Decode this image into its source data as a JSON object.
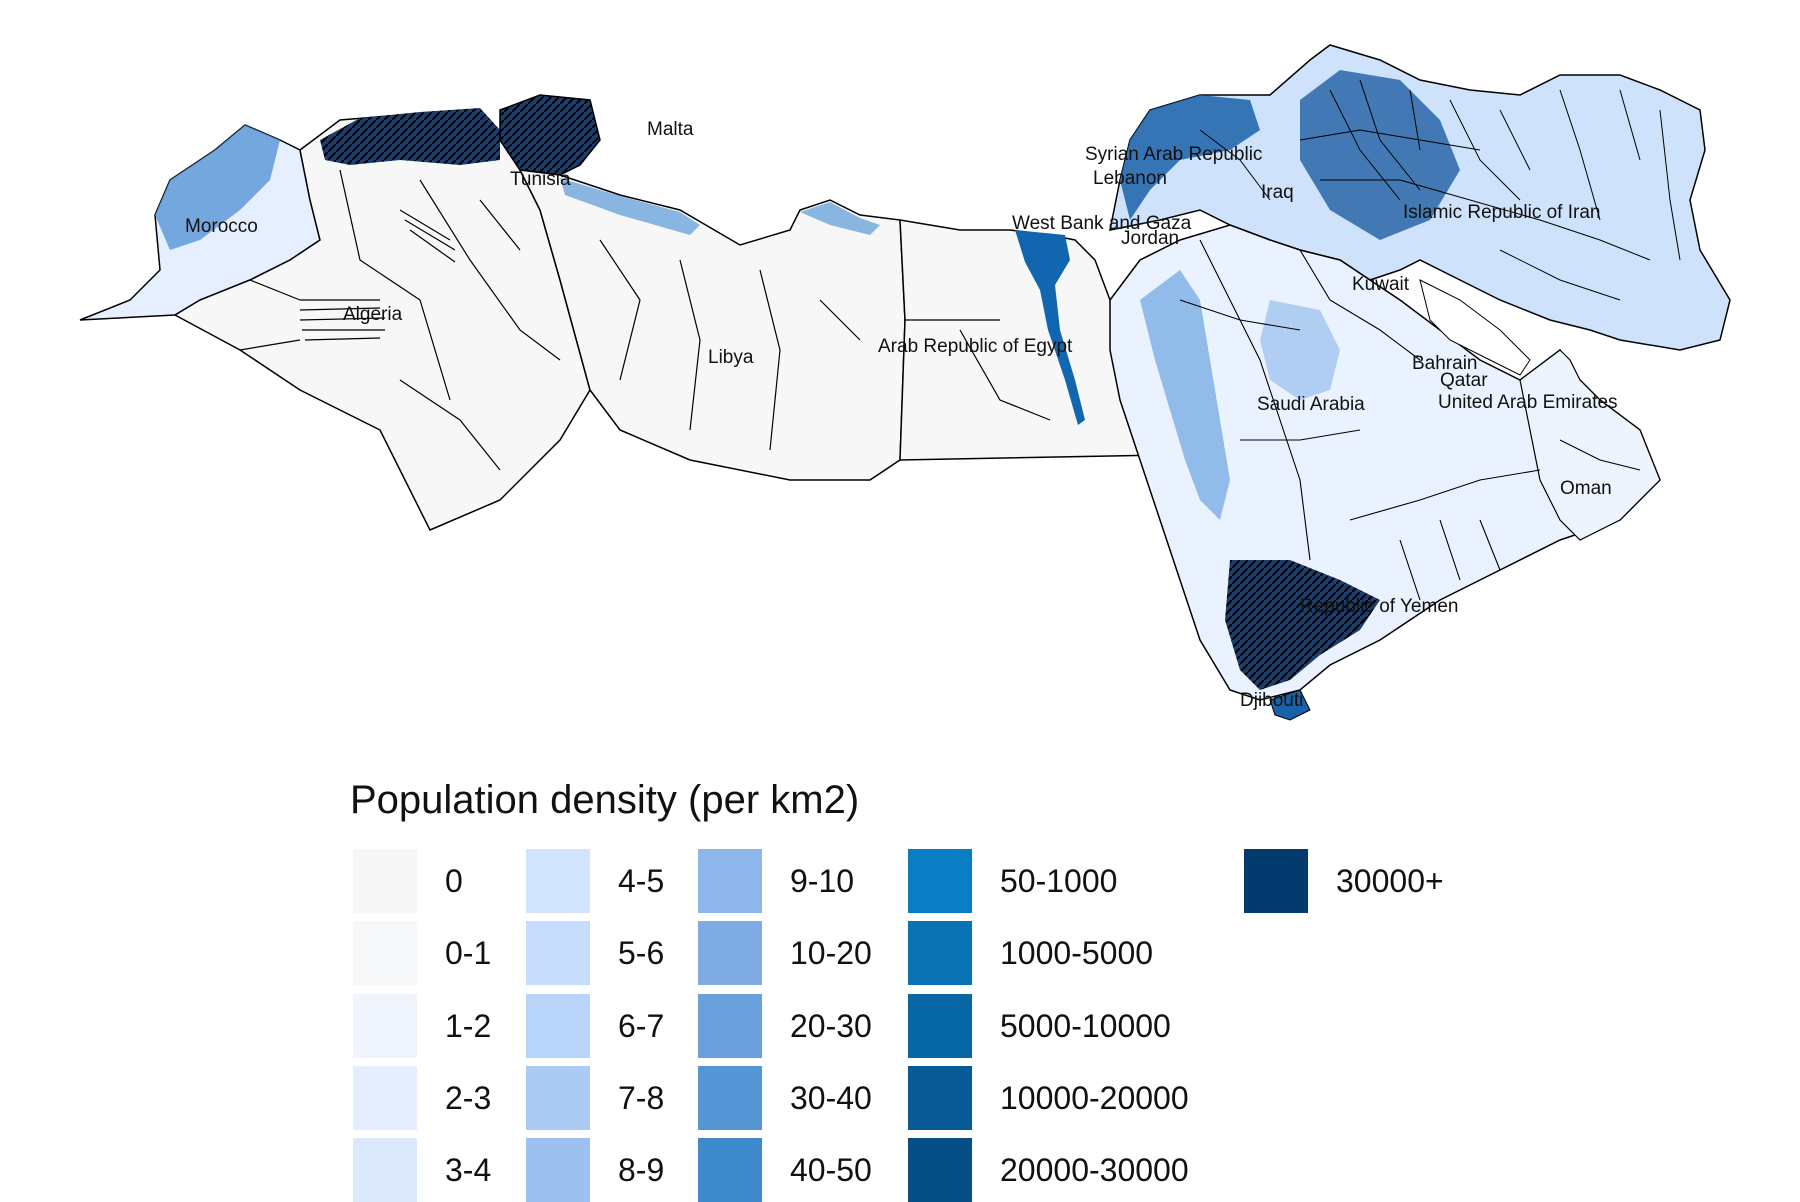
{
  "legend": {
    "title": "Population density (per km2)",
    "classes": [
      {
        "label": "0",
        "color": "#f7f7f7"
      },
      {
        "label": "0-1",
        "color": "#f7f8fa"
      },
      {
        "label": "1-2",
        "color": "#eff4fd"
      },
      {
        "label": "2-3",
        "color": "#e4eefe"
      },
      {
        "label": "3-4",
        "color": "#dce9fd"
      },
      {
        "label": "4-5",
        "color": "#d2e4fc"
      },
      {
        "label": "5-6",
        "color": "#c6ddfb"
      },
      {
        "label": "6-7",
        "color": "#b9d4f9"
      },
      {
        "label": "7-8",
        "color": "#abcaf4"
      },
      {
        "label": "8-9",
        "color": "#9dc0f0"
      },
      {
        "label": "9-10",
        "color": "#8fb6ea"
      },
      {
        "label": "10-20",
        "color": "#7eabe4"
      },
      {
        "label": "20-30",
        "color": "#6aa0dc"
      },
      {
        "label": "30-40",
        "color": "#5595d5"
      },
      {
        "label": "40-50",
        "color": "#3f89cd"
      },
      {
        "label": "50-1000",
        "color": "#0a7ec4"
      },
      {
        "label": "1000-5000",
        "color": "#0872b3"
      },
      {
        "label": "5000-10000",
        "color": "#0766a4"
      },
      {
        "label": "10000-20000",
        "color": "#075a95"
      },
      {
        "label": "20000-30000",
        "color": "#064e86"
      },
      {
        "label": "30000+",
        "color": "#053a6e"
      }
    ]
  },
  "labels": {
    "malta": "Malta",
    "morocco": "Morocco",
    "algeria": "Algeria",
    "tunisia": "Tunisia",
    "libya": "Libya",
    "egypt": "Arab Republic of Egypt",
    "syria": "Syrian Arab Republic",
    "lebanon": "Lebanon",
    "west_bank": "West Bank and Gaza",
    "jordan": "Jordan",
    "iraq": "Iraq",
    "iran": "Islamic Republic of Iran",
    "kuwait": "Kuwait",
    "bahrain": "Bahrain",
    "qatar": "Qatar",
    "uae": "United Arab Emirates",
    "saudi": "Saudi Arabia",
    "oman": "Oman",
    "yemen": "Republic of Yemen",
    "djibouti": "Djibouti"
  }
}
